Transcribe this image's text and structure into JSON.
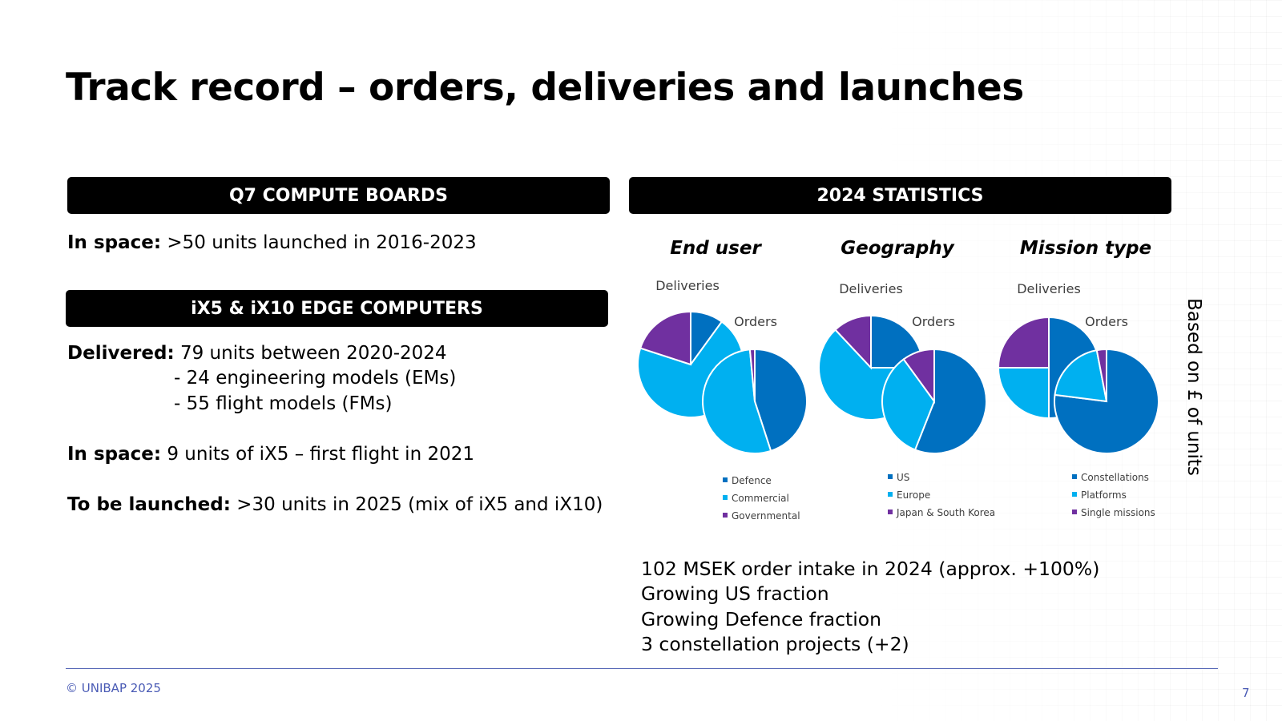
{
  "title": "Track record – orders, deliveries and launches",
  "left": {
    "q7_banner": "Q7 COMPUTE BOARDS",
    "q7_in_space_label": "In space:",
    "q7_in_space_text": " >50 units launched in 2016-2023",
    "ix_banner": "iX5 & iX10 EDGE COMPUTERS",
    "delivered_label": "Delivered:",
    "delivered_text": " 79 units between 2020-2024",
    "delivered_sub": [
      "- 24 engineering models (EMs)",
      "- 55 flight models (FMs)"
    ],
    "ix_in_space_label": "In space:",
    "ix_in_space_text": " 9 units of iX5 – first flight in 2021",
    "launch_label": "To be launched:",
    "launch_text": " >30 units in 2025 (mix of iX5 and iX10)"
  },
  "right": {
    "banner": "2024 STATISTICS",
    "vertical_note": "Based on £ of units",
    "summary": [
      "102 MSEK order intake in 2024 (approx. +100%)",
      "Growing US fraction",
      "Growing Defence fraction",
      "3 constellation projects (+2)"
    ]
  },
  "chart_data": [
    {
      "type": "pie",
      "title": "End user",
      "legend": [
        "Defence",
        "Commercial",
        "Governmental"
      ],
      "colors": [
        "#0070c0",
        "#00b0f0",
        "#7030a0"
      ],
      "series": [
        {
          "name": "Deliveries",
          "values": [
            10,
            70,
            20
          ]
        },
        {
          "name": "Orders",
          "values": [
            45,
            53.5,
            1.5
          ]
        }
      ]
    },
    {
      "type": "pie",
      "title": "Geography",
      "legend": [
        "US",
        "Europe",
        "Japan & South Korea"
      ],
      "colors": [
        "#0070c0",
        "#00b0f0",
        "#7030a0"
      ],
      "series": [
        {
          "name": "Deliveries",
          "values": [
            25,
            63,
            12
          ]
        },
        {
          "name": "Orders",
          "values": [
            56,
            34,
            10
          ]
        }
      ]
    },
    {
      "type": "pie",
      "title": "Mission type",
      "legend": [
        "Constellations",
        "Platforms",
        "Single missions"
      ],
      "colors": [
        "#0070c0",
        "#00b0f0",
        "#7030a0"
      ],
      "series": [
        {
          "name": "Deliveries",
          "values": [
            50,
            25,
            25
          ]
        },
        {
          "name": "Orders",
          "values": [
            77,
            20,
            3
          ]
        }
      ]
    }
  ],
  "footer": {
    "copyright": "© UNIBAP 2025",
    "page": "7"
  }
}
